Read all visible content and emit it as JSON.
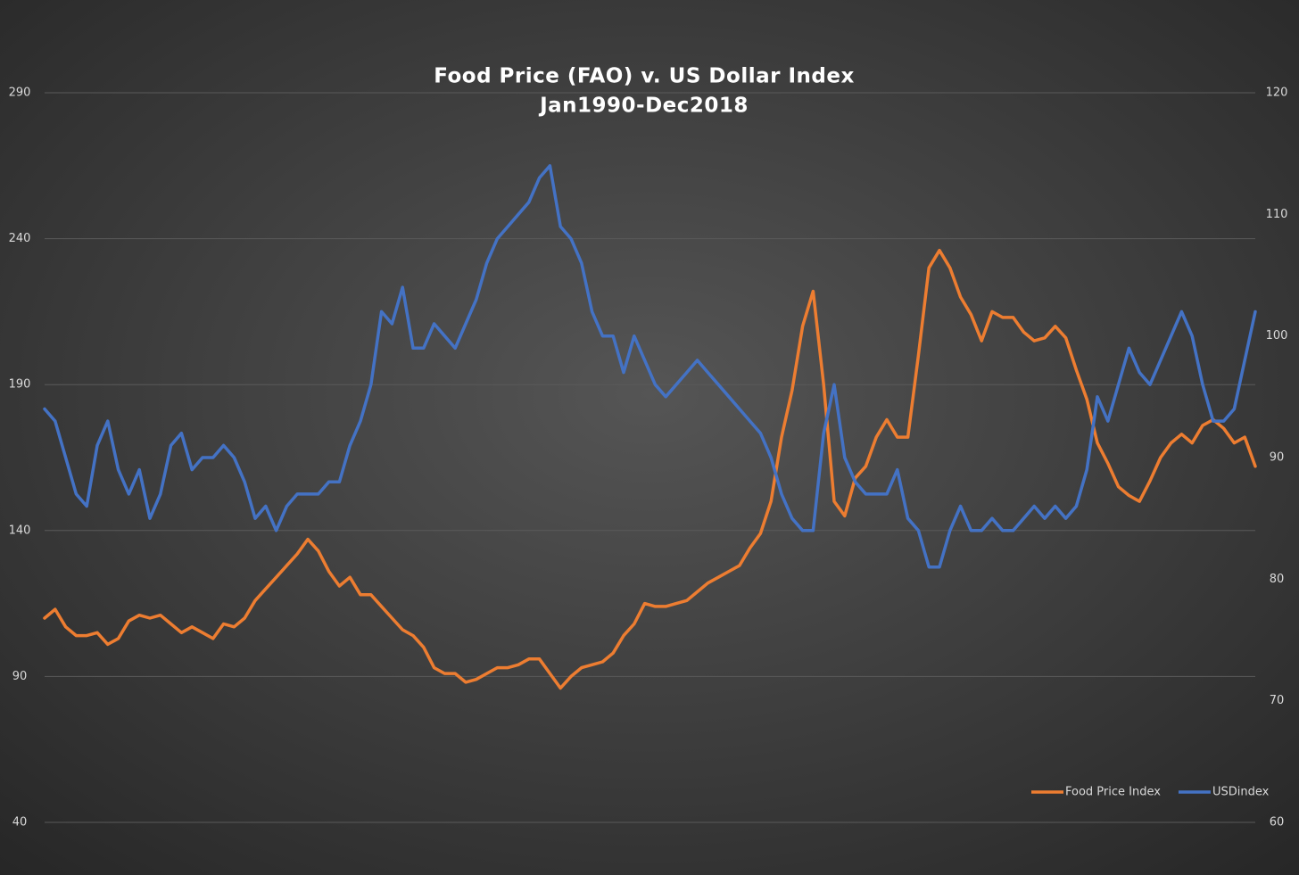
{
  "chart_data": {
    "type": "line",
    "title": "Food Price  (FAO) v. US Dollar Index",
    "subtitle": "Jan1990-Dec2018",
    "ylim": [
      40,
      290
    ],
    "yticks": [
      40,
      90,
      140,
      190,
      240,
      290
    ],
    "y2lim": [
      60,
      120
    ],
    "y2ticks": [
      60,
      70,
      80,
      90,
      100,
      110,
      120
    ],
    "grid": true,
    "legend": "bottom-right",
    "series": [
      {
        "name": "Food Price Index",
        "color": "#ed7d31",
        "values": [
          110,
          113,
          107,
          104,
          104,
          105,
          101,
          103,
          109,
          111,
          110,
          111,
          108,
          105,
          107,
          105,
          103,
          108,
          107,
          110,
          116,
          120,
          124,
          128,
          132,
          137,
          133,
          126,
          121,
          124,
          118,
          118,
          114,
          110,
          106,
          104,
          100,
          93,
          91,
          91,
          88,
          89,
          91,
          93,
          93,
          94,
          96,
          96,
          91,
          86,
          90,
          93,
          94,
          95,
          98,
          104,
          108,
          115,
          114,
          114,
          115,
          116,
          119,
          122,
          124,
          126,
          128,
          134,
          139,
          150,
          172,
          188,
          210,
          222,
          190,
          150,
          145,
          158,
          162,
          172,
          178,
          172,
          172,
          200,
          230,
          236,
          230,
          220,
          214,
          205,
          215,
          213,
          213,
          208,
          205,
          206,
          210,
          206,
          195,
          185,
          170,
          163,
          155,
          152,
          150,
          157,
          165,
          170,
          173,
          170,
          176,
          178,
          175,
          170,
          172,
          162
        ]
      },
      {
        "name": "USDindex",
        "color": "#4472c4",
        "axis": "y2",
        "values": [
          94,
          93,
          90,
          87,
          86,
          91,
          93,
          89,
          87,
          89,
          85,
          87,
          91,
          92,
          89,
          90,
          90,
          91,
          90,
          88,
          85,
          86,
          84,
          86,
          87,
          87,
          87,
          88,
          88,
          91,
          93,
          96,
          102,
          101,
          104,
          99,
          99,
          101,
          100,
          99,
          101,
          103,
          106,
          108,
          109,
          110,
          111,
          113,
          114,
          109,
          108,
          106,
          102,
          100,
          100,
          97,
          100,
          98,
          96,
          95,
          96,
          97,
          98,
          97,
          96,
          95,
          94,
          93,
          92,
          90,
          87,
          85,
          84,
          84,
          92,
          96,
          90,
          88,
          87,
          87,
          87,
          89,
          85,
          84,
          81,
          81,
          84,
          86,
          84,
          84,
          85,
          84,
          84,
          85,
          86,
          85,
          86,
          85,
          86,
          89,
          95,
          93,
          96,
          99,
          97,
          96,
          98,
          100,
          102,
          100,
          96,
          93,
          93,
          94,
          98,
          102
        ]
      }
    ]
  }
}
